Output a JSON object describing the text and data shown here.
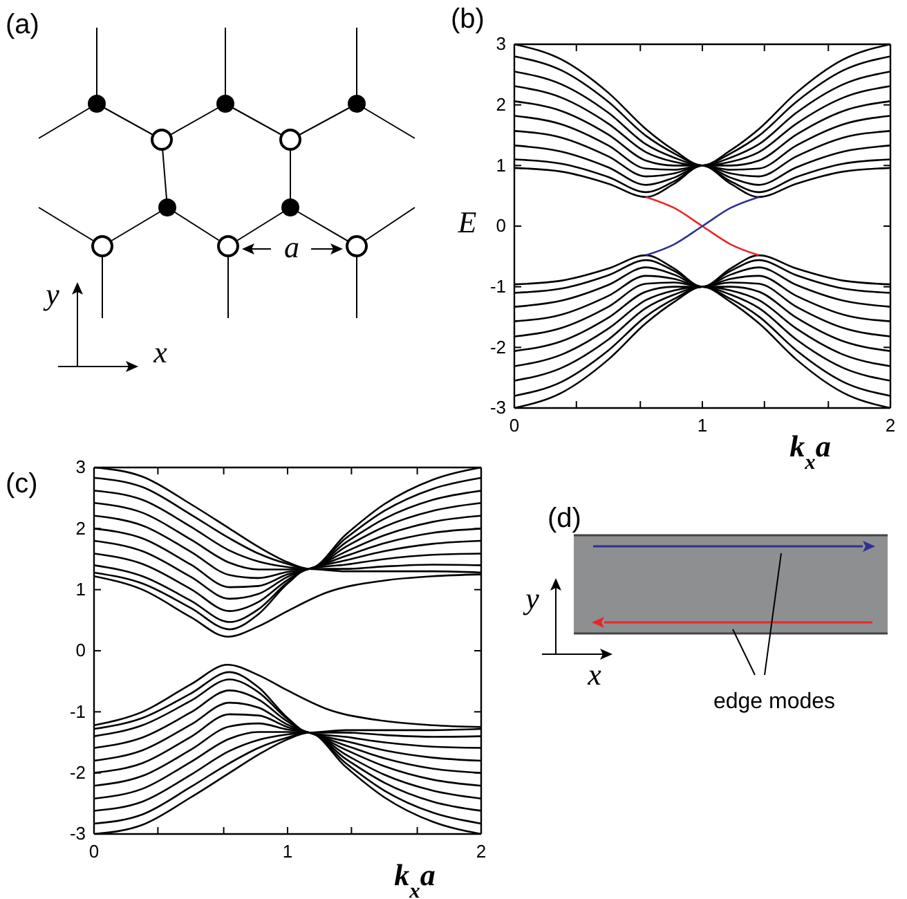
{
  "chart_data": [
    {
      "type": "other",
      "title": "(a)",
      "annotations": [
        "a",
        "y",
        "x"
      ]
    },
    {
      "type": "line",
      "title": "(b)",
      "ylabel": "E",
      "xlabel": "k$_{x}$a",
      "xlim": [
        0,
        2
      ],
      "ylim": [
        -3,
        3
      ],
      "xticks": [
        0,
        {
          "value": 0.33,
          "label": null
        },
        {
          "value": 0.67,
          "label": null
        },
        1,
        {
          "value": 1.33,
          "label": null
        },
        {
          "value": 1.67,
          "label": null
        },
        2
      ],
      "yticks": [
        -3,
        -2,
        -1,
        0,
        1,
        2,
        3
      ],
      "x": [
        0,
        0.25,
        0.5,
        0.7,
        0.85,
        1,
        1.15,
        1.3,
        1.5,
        1.75,
        2
      ],
      "series": [
        {
          "color": "#000000",
          "values": [
            3,
            2.75,
            2.2,
            1.6,
            1.25,
            1,
            1.25,
            1.6,
            2.2,
            2.75,
            3
          ]
        },
        {
          "color": "#000000",
          "values": [
            2.8,
            2.57,
            2.05,
            1.49,
            1.2,
            1,
            1.2,
            1.49,
            2.05,
            2.57,
            2.8
          ]
        },
        {
          "color": "#000000",
          "values": [
            2.55,
            2.34,
            1.87,
            1.35,
            1.13,
            1,
            1.13,
            1.35,
            1.87,
            2.34,
            2.55
          ]
        },
        {
          "color": "#000000",
          "values": [
            2.31,
            2.12,
            1.69,
            1.22,
            1.06,
            1,
            1.06,
            1.22,
            1.69,
            2.12,
            2.31
          ]
        },
        {
          "color": "#000000",
          "values": [
            2.06,
            1.9,
            1.51,
            1.08,
            1,
            1,
            1,
            1.08,
            1.51,
            1.9,
            2.06
          ]
        },
        {
          "color": "#000000",
          "values": [
            1.82,
            1.68,
            1.33,
            0.95,
            0.93,
            1,
            0.93,
            0.95,
            1.33,
            1.68,
            1.82
          ]
        },
        {
          "color": "#000000",
          "values": [
            1.57,
            1.46,
            1.15,
            0.82,
            0.87,
            1,
            0.87,
            0.82,
            1.15,
            1.46,
            1.57
          ]
        },
        {
          "color": "#000000",
          "values": [
            1.33,
            1.23,
            0.97,
            0.68,
            0.8,
            1,
            0.8,
            0.68,
            0.97,
            1.23,
            1.33
          ]
        },
        {
          "color": "#000000",
          "values": [
            1.1,
            1.03,
            0.81,
            0.56,
            0.74,
            1,
            0.74,
            0.56,
            0.81,
            1.03,
            1.1
          ]
        },
        {
          "color": "#000000",
          "values": [
            0.96,
            0.9,
            0.7,
            0.48,
            0.7,
            1,
            0.7,
            0.48,
            0.7,
            0.9,
            0.96
          ]
        },
        {
          "color": "#000000",
          "values": [
            -3,
            -2.75,
            -2.2,
            -1.6,
            -1.25,
            -1,
            -1.25,
            -1.6,
            -2.2,
            -2.75,
            -3
          ]
        },
        {
          "color": "#000000",
          "values": [
            -2.8,
            -2.57,
            -2.05,
            -1.49,
            -1.2,
            -1,
            -1.2,
            -1.49,
            -2.05,
            -2.57,
            -2.8
          ]
        },
        {
          "color": "#000000",
          "values": [
            -2.55,
            -2.34,
            -1.87,
            -1.35,
            -1.13,
            -1,
            -1.13,
            -1.35,
            -1.87,
            -2.34,
            -2.55
          ]
        },
        {
          "color": "#000000",
          "values": [
            -2.31,
            -2.12,
            -1.69,
            -1.22,
            -1.06,
            -1,
            -1.06,
            -1.22,
            -1.69,
            -2.12,
            -2.31
          ]
        },
        {
          "color": "#000000",
          "values": [
            -2.06,
            -1.9,
            -1.51,
            -1.08,
            -1,
            -1,
            -1,
            -1.08,
            -1.51,
            -1.9,
            -2.06
          ]
        },
        {
          "color": "#000000",
          "values": [
            -1.82,
            -1.68,
            -1.33,
            -0.95,
            -0.93,
            -1,
            -0.93,
            -0.95,
            -1.33,
            -1.68,
            -1.82
          ]
        },
        {
          "color": "#000000",
          "values": [
            -1.57,
            -1.46,
            -1.15,
            -0.82,
            -0.87,
            -1,
            -0.87,
            -0.82,
            -1.15,
            -1.46,
            -1.57
          ]
        },
        {
          "color": "#000000",
          "values": [
            -1.33,
            -1.23,
            -0.97,
            -0.68,
            -0.8,
            -1,
            -0.8,
            -0.68,
            -0.97,
            -1.23,
            -1.33
          ]
        },
        {
          "color": "#000000",
          "values": [
            -1.1,
            -1.03,
            -0.81,
            -0.56,
            -0.74,
            -1,
            -0.74,
            -0.56,
            -0.81,
            -1.03,
            -1.1
          ]
        },
        {
          "color": "#000000",
          "values": [
            -0.96,
            -0.9,
            -0.7,
            -0.48,
            -0.7,
            -1,
            -0.7,
            -0.48,
            -0.7,
            -0.9,
            -0.96
          ]
        },
        {
          "color": "#e8262a",
          "x": [
            0.7,
            0.85,
            1,
            1.15,
            1.3
          ],
          "values": [
            0.48,
            0.3,
            0,
            -0.3,
            -0.48
          ]
        },
        {
          "color": "#2e3192",
          "x": [
            0.7,
            0.85,
            1,
            1.15,
            1.3
          ],
          "values": [
            -0.48,
            -0.3,
            0,
            0.3,
            0.48
          ]
        }
      ]
    },
    {
      "type": "line",
      "title": "(c)",
      "xlabel": "k$_{x}$a",
      "xlim": [
        0,
        2
      ],
      "ylim": [
        -3,
        3
      ],
      "xticks": [
        0,
        {
          "value": 0.33,
          "label": null
        },
        {
          "value": 0.67,
          "label": null
        },
        1,
        {
          "value": 1.33,
          "label": null
        },
        {
          "value": 1.67,
          "label": null
        },
        2
      ],
      "yticks": [
        -3,
        -2,
        -1,
        0,
        1,
        2,
        3
      ],
      "x": [
        0,
        0.25,
        0.5,
        0.7,
        0.85,
        1,
        1.11,
        1.3,
        1.5,
        1.75,
        2
      ],
      "series": [
        {
          "color": "#000000",
          "values": [
            3,
            2.85,
            2.4,
            2,
            1.7,
            1.45,
            1.34,
            1.9,
            2.4,
            2.8,
            3
          ]
        },
        {
          "color": "#000000",
          "values": [
            2.83,
            2.68,
            2.23,
            1.84,
            1.59,
            1.42,
            1.34,
            1.84,
            2.29,
            2.65,
            2.83
          ]
        },
        {
          "color": "#000000",
          "values": [
            2.62,
            2.47,
            2.03,
            1.64,
            1.46,
            1.37,
            1.34,
            1.77,
            2.16,
            2.47,
            2.62
          ]
        },
        {
          "color": "#000000",
          "values": [
            2.42,
            2.26,
            1.82,
            1.44,
            1.33,
            1.33,
            1.34,
            1.7,
            2.03,
            2.29,
            2.42
          ]
        },
        {
          "color": "#000000",
          "values": [
            2.21,
            2.05,
            1.62,
            1.24,
            1.19,
            1.29,
            1.34,
            1.62,
            1.89,
            2.11,
            2.21
          ]
        },
        {
          "color": "#000000",
          "values": [
            2,
            1.84,
            1.41,
            1.04,
            1.06,
            1.25,
            1.34,
            1.55,
            1.76,
            1.93,
            2
          ]
        },
        {
          "color": "#000000",
          "values": [
            1.8,
            1.63,
            1.21,
            0.85,
            0.93,
            1.21,
            1.34,
            1.48,
            1.63,
            1.75,
            1.8
          ]
        },
        {
          "color": "#000000",
          "values": [
            1.59,
            1.42,
            1.01,
            0.65,
            0.8,
            1.16,
            1.34,
            1.41,
            1.5,
            1.57,
            1.59
          ]
        },
        {
          "color": "#000000",
          "values": [
            1.4,
            1.22,
            0.82,
            0.47,
            0.68,
            1.12,
            1.34,
            1.34,
            1.38,
            1.41,
            1.4
          ]
        },
        {
          "color": "#000000",
          "values": [
            1.28,
            1.1,
            0.7,
            0.35,
            0.6,
            1.1,
            1.34,
            1.3,
            1.3,
            1.3,
            1.28
          ]
        },
        {
          "color": "#000000",
          "x": [
            0,
            0.25,
            0.5,
            0.69,
            0.85,
            1,
            1.2,
            1.5,
            1.75,
            2
          ],
          "values": [
            1.22,
            1,
            0.55,
            0.23,
            0.4,
            0.65,
            0.95,
            1.15,
            1.22,
            1.25
          ]
        },
        {
          "color": "#000000",
          "values": [
            -3,
            -2.85,
            -2.4,
            -2,
            -1.7,
            -1.45,
            -1.34,
            -1.9,
            -2.4,
            -2.8,
            -3
          ]
        },
        {
          "color": "#000000",
          "values": [
            -2.83,
            -2.68,
            -2.23,
            -1.84,
            -1.59,
            -1.42,
            -1.34,
            -1.84,
            -2.29,
            -2.65,
            -2.83
          ]
        },
        {
          "color": "#000000",
          "values": [
            -2.62,
            -2.47,
            -2.03,
            -1.64,
            -1.46,
            -1.37,
            -1.34,
            -1.77,
            -2.16,
            -2.47,
            -2.62
          ]
        },
        {
          "color": "#000000",
          "values": [
            -2.42,
            -2.26,
            -1.82,
            -1.44,
            -1.33,
            -1.33,
            -1.34,
            -1.7,
            -2.03,
            -2.29,
            -2.42
          ]
        },
        {
          "color": "#000000",
          "values": [
            -2.21,
            -2.05,
            -1.62,
            -1.24,
            -1.19,
            -1.29,
            -1.34,
            -1.62,
            -1.89,
            -2.11,
            -2.21
          ]
        },
        {
          "color": "#000000",
          "values": [
            -2,
            -1.84,
            -1.41,
            -1.04,
            -1.06,
            -1.25,
            -1.34,
            -1.55,
            -1.76,
            -1.93,
            -2
          ]
        },
        {
          "color": "#000000",
          "values": [
            -1.8,
            -1.63,
            -1.21,
            -0.85,
            -0.93,
            -1.21,
            -1.34,
            -1.48,
            -1.63,
            -1.75,
            -1.8
          ]
        },
        {
          "color": "#000000",
          "values": [
            -1.59,
            -1.42,
            -1.01,
            -0.65,
            -0.8,
            -1.16,
            -1.34,
            -1.41,
            -1.5,
            -1.57,
            -1.59
          ]
        },
        {
          "color": "#000000",
          "values": [
            -1.4,
            -1.22,
            -0.82,
            -0.47,
            -0.68,
            -1.12,
            -1.34,
            -1.34,
            -1.38,
            -1.41,
            -1.4
          ]
        },
        {
          "color": "#000000",
          "values": [
            -1.28,
            -1.1,
            -0.7,
            -0.35,
            -0.6,
            -1.1,
            -1.34,
            -1.3,
            -1.3,
            -1.3,
            -1.28
          ]
        },
        {
          "color": "#000000",
          "x": [
            0,
            0.25,
            0.5,
            0.69,
            0.85,
            1,
            1.2,
            1.5,
            1.75,
            2
          ],
          "values": [
            -1.22,
            -1,
            -0.55,
            -0.23,
            -0.4,
            -0.65,
            -0.95,
            -1.15,
            -1.22,
            -1.25
          ]
        }
      ]
    },
    {
      "type": "other",
      "title": "(d)",
      "annotations": [
        "y",
        "x",
        "edge modes"
      ]
    }
  ]
}
